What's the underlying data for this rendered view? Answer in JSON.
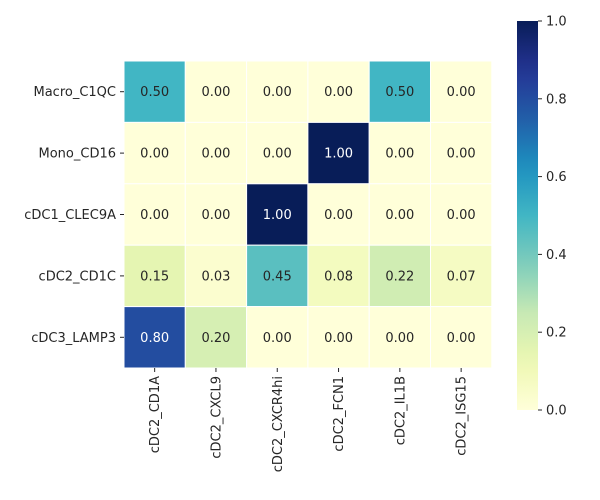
{
  "chart_data": {
    "type": "heatmap",
    "title": "",
    "xlabel": "",
    "ylabel": "",
    "x_categories": [
      "cDC2_CD1A",
      "cDC2_CXCL9",
      "cDC2_CXCR4hi",
      "cDC2_FCN1",
      "cDC2_IL1B",
      "cDC2_ISG15"
    ],
    "y_categories": [
      "Macro_C1QC",
      "Mono_CD16",
      "cDC1_CLEC9A",
      "cDC2_CD1C",
      "cDC3_LAMP3"
    ],
    "values": [
      [
        0.5,
        0.0,
        0.0,
        0.0,
        0.5,
        0.0
      ],
      [
        0.0,
        0.0,
        0.0,
        1.0,
        0.0,
        0.0
      ],
      [
        0.0,
        0.0,
        1.0,
        0.0,
        0.0,
        0.0
      ],
      [
        0.15,
        0.03,
        0.45,
        0.08,
        0.22,
        0.07
      ],
      [
        0.8,
        0.2,
        0.0,
        0.0,
        0.0,
        0.0
      ]
    ],
    "value_format": "0.00",
    "colormap": "YlGnBu",
    "colorbar": {
      "vmin": 0.0,
      "vmax": 1.0,
      "ticks": [
        0.0,
        0.2,
        0.4,
        0.6,
        0.8,
        1.0
      ],
      "tick_labels": [
        "0.0",
        "0.2",
        "0.4",
        "0.6",
        "0.8",
        "1.0"
      ],
      "placement": "right"
    },
    "cell_border_color": "#ffffff",
    "grid": false
  }
}
